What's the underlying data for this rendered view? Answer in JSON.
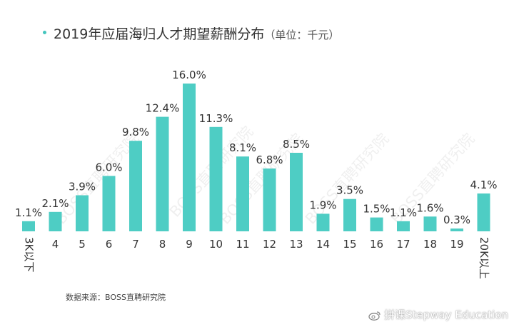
{
  "title": {
    "main": "2019年应届海归人才期望薪酬分布",
    "unit": "（单位：千元）"
  },
  "source": "数据来源：BOSS直聘研究院",
  "watermarks": [
    "BOSS直聘研究院",
    "BOSS直聘研究院",
    "BOSS直聘研究院",
    "BOSS直聘研究院",
    "BOSS直聘研究院"
  ],
  "brand": "拼课Stepway Education",
  "colors": {
    "bar": "#4ecdc4",
    "label": "#333333",
    "tick": "#333333",
    "accent_dot": "#44c5bd"
  },
  "chart_data": {
    "type": "bar",
    "title": "2019年应届海归人才期望薪酬分布",
    "xlabel": "",
    "ylabel": "",
    "ylim": [
      0,
      16
    ],
    "grid": false,
    "categories": [
      "3K以下",
      "4",
      "5",
      "6",
      "7",
      "8",
      "9",
      "10",
      "11",
      "12",
      "13",
      "14",
      "15",
      "16",
      "17",
      "18",
      "19",
      "20K以上"
    ],
    "values": [
      1.1,
      2.1,
      3.9,
      6.0,
      9.8,
      12.4,
      16.0,
      11.3,
      8.1,
      6.8,
      8.5,
      1.9,
      3.5,
      1.5,
      1.1,
      1.6,
      0.3,
      4.1
    ],
    "labels": [
      "1.1%",
      "2.1%",
      "3.9%",
      "6.0%",
      "9.8%",
      "12.4%",
      "16.0%",
      "11.3%",
      "8.1%",
      "6.8%",
      "8.5%",
      "1.9%",
      "3.5%",
      "1.5%",
      "1.1%",
      "1.6%",
      "0.3%",
      "4.1%"
    ]
  }
}
